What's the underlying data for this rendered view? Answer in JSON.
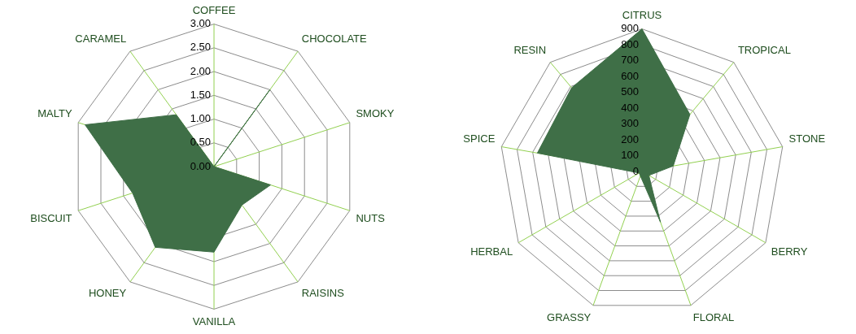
{
  "chart_data": [
    {
      "type": "radar",
      "categories": [
        "COFFEE",
        "CHOCOLATE",
        "SMOKY",
        "NUTS",
        "RAISINS",
        "VANILLA",
        "HONEY",
        "BISCUIT",
        "MALTY",
        "CARAMEL"
      ],
      "series": [
        {
          "color": "#3f6f47",
          "values": [
            0,
            2.0,
            0,
            1.25,
            1.0,
            1.8,
            2.1,
            1.8,
            2.85,
            1.35
          ]
        }
      ],
      "ylim": [
        0,
        3
      ],
      "yticks": [
        {
          "value": 0,
          "label": "0.00"
        },
        {
          "value": 0.5,
          "label": "0.50"
        },
        {
          "value": 1,
          "label": "1.00"
        },
        {
          "value": 1.5,
          "label": "1.50"
        },
        {
          "value": 2,
          "label": "2.00"
        },
        {
          "value": 2.5,
          "label": "2.50"
        },
        {
          "value": 3,
          "label": "3.00"
        }
      ],
      "grid": true,
      "legend": false
    },
    {
      "type": "radar",
      "categories": [
        "CITRUS",
        "TROPICAL",
        "STONE",
        "BERRY",
        "FLORAL",
        "GRASSY",
        "HERBAL",
        "SPICE",
        "RESIN"
      ],
      "series": [
        {
          "color": "#3f6f47",
          "values": [
            900,
            470,
            200,
            50,
            340,
            30,
            20,
            670,
            690
          ]
        }
      ],
      "ylim": [
        0,
        900
      ],
      "yticks": [
        0,
        100,
        200,
        300,
        400,
        500,
        600,
        700,
        800,
        900
      ],
      "grid": true,
      "legend": false
    }
  ]
}
